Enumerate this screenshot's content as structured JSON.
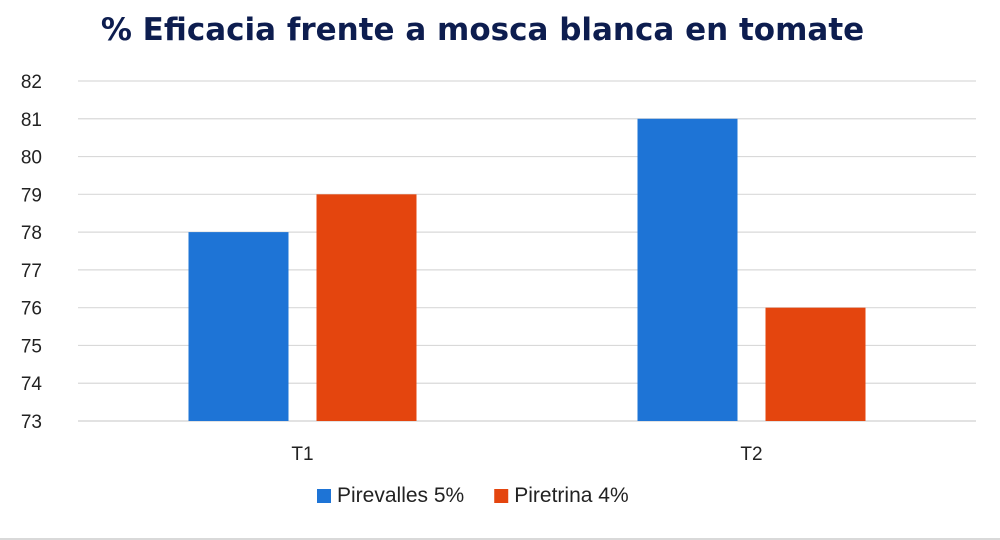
{
  "chart_data": {
    "type": "bar",
    "title": "% Eficacia frente a mosca blanca en tomate",
    "categories": [
      "T1",
      "T2"
    ],
    "series": [
      {
        "name": "Pirevalles 5%",
        "values": [
          78,
          81
        ],
        "color": "#1e74d6"
      },
      {
        "name": "Piretrina 4%",
        "values": [
          79,
          76
        ],
        "color": "#e4450e"
      }
    ],
    "ylim": [
      73,
      82
    ],
    "yticks": [
      73,
      74,
      75,
      76,
      77,
      78,
      79,
      80,
      81,
      82
    ],
    "grid": true,
    "gridColor": "#d9d9d9",
    "legend_position": "bottom"
  }
}
